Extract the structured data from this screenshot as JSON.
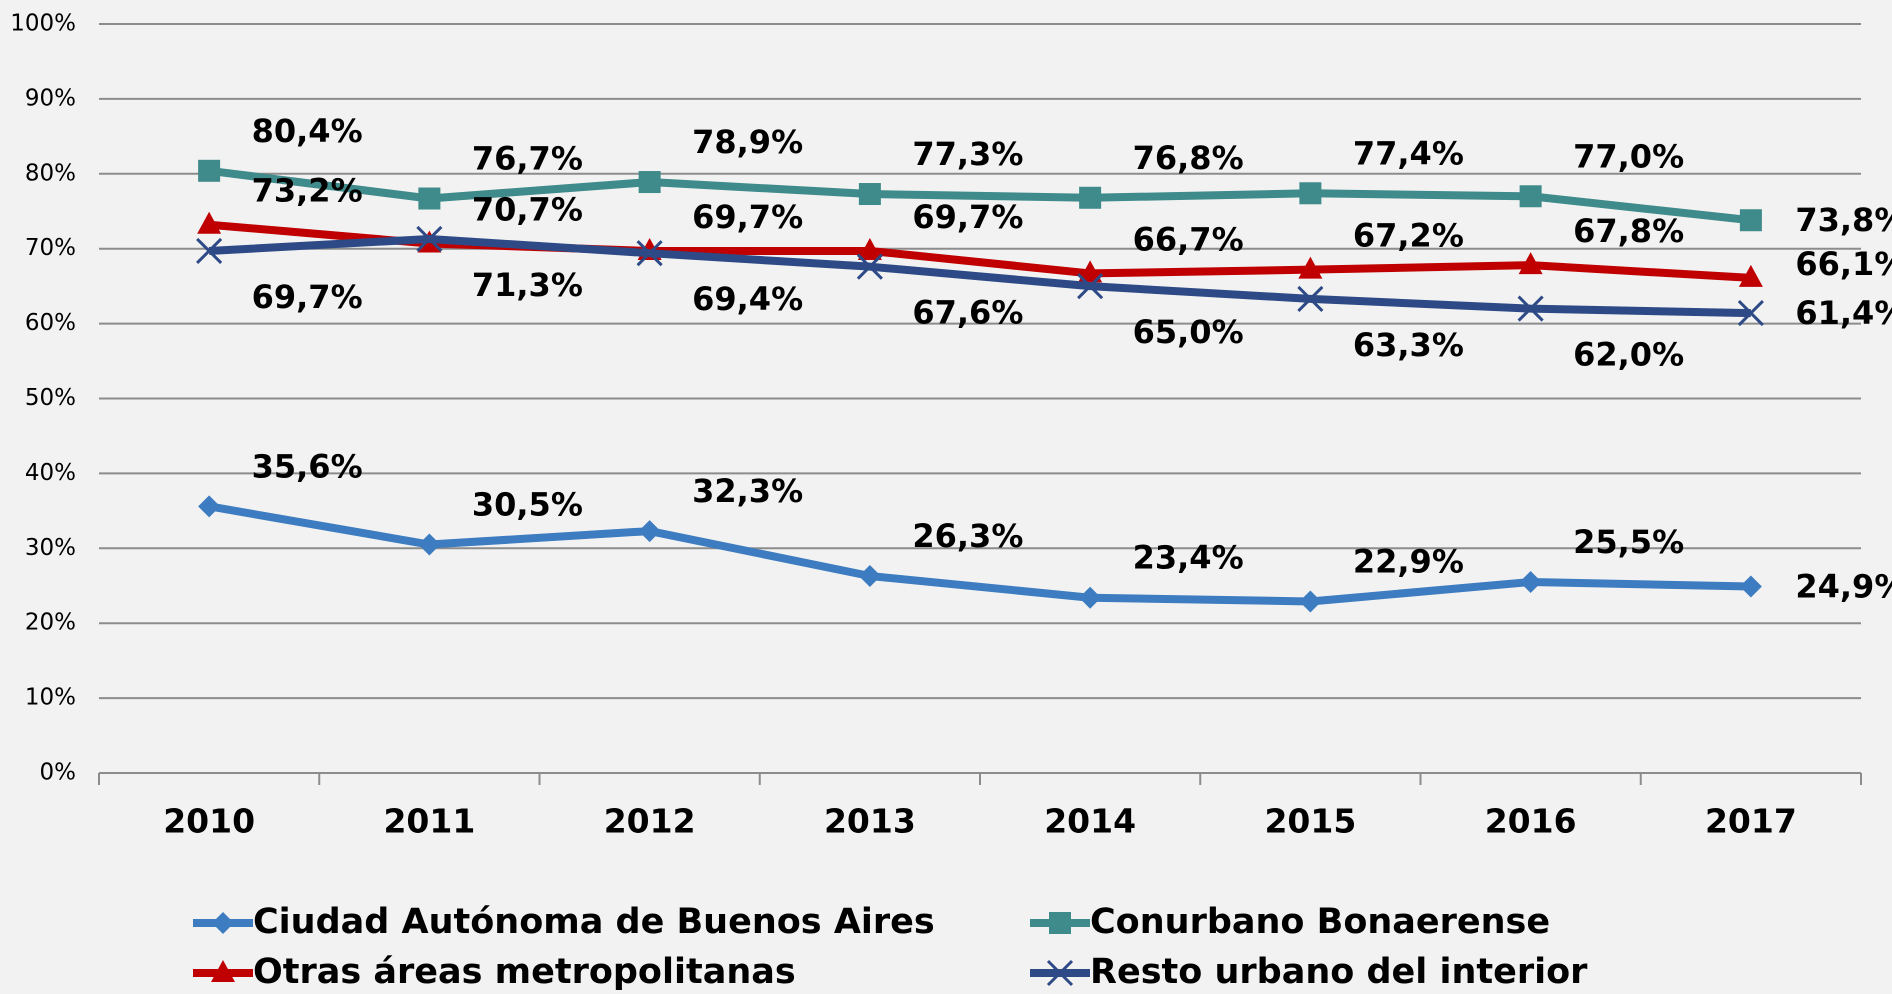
{
  "chart_data": {
    "type": "line",
    "categories": [
      "2010",
      "2011",
      "2012",
      "2013",
      "2014",
      "2015",
      "2016",
      "2017"
    ],
    "ylim": [
      0,
      100
    ],
    "yticks": [
      {
        "value": 0,
        "label": "0%"
      },
      {
        "value": 10,
        "label": "10%"
      },
      {
        "value": 20,
        "label": "20%"
      },
      {
        "value": 30,
        "label": "30%"
      },
      {
        "value": 40,
        "label": "40%"
      },
      {
        "value": 50,
        "label": "50%"
      },
      {
        "value": 60,
        "label": "60%"
      },
      {
        "value": 70,
        "label": "70%"
      },
      {
        "value": 80,
        "label": "80%"
      },
      {
        "value": 90,
        "label": "90%"
      },
      {
        "value": 100,
        "label": "100%"
      }
    ],
    "grid": true,
    "legend": "bottom",
    "series": [
      {
        "name": "Ciudad Autónoma de Buenos Aires",
        "color": "#3d7cc0",
        "marker": "diamond",
        "values": [
          35.6,
          30.5,
          32.3,
          26.3,
          23.4,
          22.9,
          25.5,
          24.9
        ],
        "value_labels": [
          "35,6%",
          "30,5%",
          "32,3%",
          "26,3%",
          "23,4%",
          "22,9%",
          "25,5%",
          "24,9%"
        ]
      },
      {
        "name": "Conurbano Bonaerense",
        "color": "#3f8a8a",
        "marker": "square",
        "values": [
          80.4,
          76.7,
          78.9,
          77.3,
          76.8,
          77.4,
          77.0,
          73.8
        ],
        "value_labels": [
          "80,4%",
          "76,7%",
          "78,9%",
          "77,3%",
          "76,8%",
          "77,4%",
          "77,0%",
          "73,8%"
        ]
      },
      {
        "name": "Otras áreas metropolitanas",
        "color": "#c00000",
        "marker": "triangle",
        "values": [
          73.2,
          70.7,
          69.7,
          69.7,
          66.7,
          67.2,
          67.8,
          66.1
        ],
        "value_labels": [
          "73,2%",
          "70,7%",
          "69,7%",
          "69,7%",
          "66,7%",
          "67,2%",
          "67,8%",
          "66,1%"
        ]
      },
      {
        "name": "Resto urbano del interior",
        "color": "#2e4a86",
        "marker": "x",
        "values": [
          69.7,
          71.3,
          69.4,
          67.6,
          65.0,
          63.3,
          62.0,
          61.4
        ],
        "value_labels": [
          "69,7%",
          "71,3%",
          "69,4%",
          "67,6%",
          "65,0%",
          "63,3%",
          "62,0%",
          "61,4%"
        ]
      }
    ]
  }
}
